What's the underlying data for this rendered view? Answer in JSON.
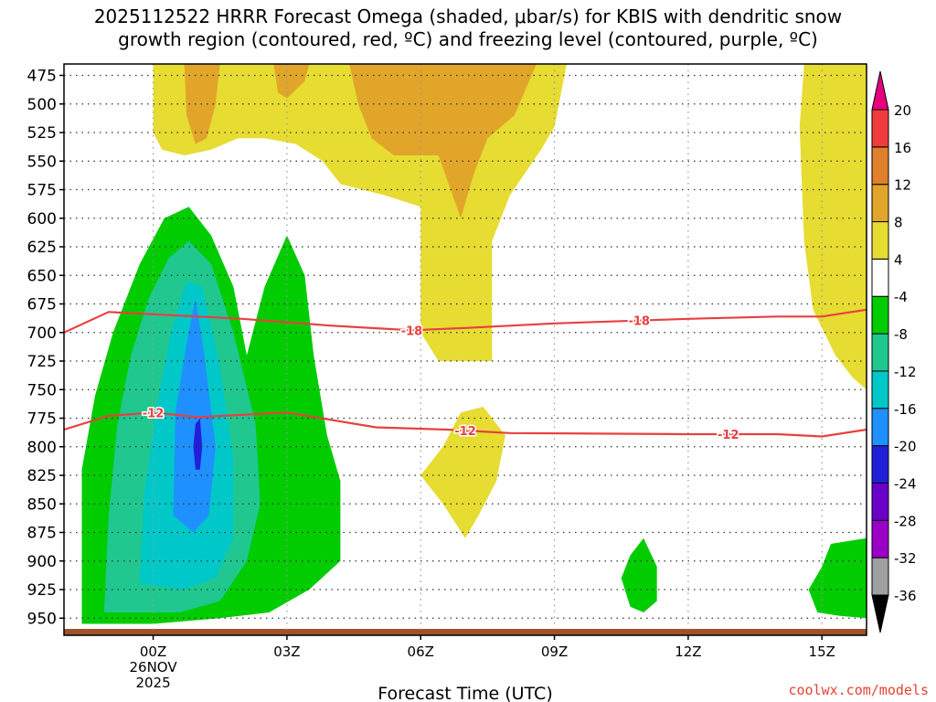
{
  "title": {
    "line1": "2025112522 HRRR Forecast Omega (shaded, μbar/s) for KBIS with dendritic snow",
    "line2": "growth region (contoured, red, ºC) and freezing level (contoured, purple, ºC)"
  },
  "credit": "coolwx.com/models",
  "chart_data": {
    "type": "contour",
    "title": "2025112522 HRRR Forecast Omega (shaded, μbar/s) for KBIS with dendritic snow growth region (contoured, red, ºC) and freezing level (contoured, purple, ºC)",
    "xlabel": "Forecast Time (UTC)",
    "ylabel": "",
    "x_ticks": [
      {
        "label": "00Z",
        "sub": [
          "26NOV",
          "2025"
        ]
      },
      {
        "label": "03Z"
      },
      {
        "label": "06Z"
      },
      {
        "label": "09Z"
      },
      {
        "label": "12Z"
      },
      {
        "label": "15Z"
      }
    ],
    "xlim_hours": [
      -2,
      16
    ],
    "y_ticks": [
      475,
      500,
      525,
      550,
      575,
      600,
      625,
      650,
      675,
      700,
      725,
      750,
      775,
      800,
      825,
      850,
      875,
      900,
      925,
      950
    ],
    "ylim_hpa": [
      465,
      965
    ],
    "colorbar": {
      "levels": [
        -36,
        -32,
        -28,
        -24,
        -20,
        -16,
        -12,
        -8,
        -4,
        4,
        8,
        12,
        16,
        20
      ],
      "colors": {
        "le_-36": "#000000",
        "-36_-32": "#a0a0a0",
        "-32_-28": "#9b00c8",
        "-28_-24": "#6b00c8",
        "-24_-20": "#2020d8",
        "-20_-16": "#1e90ff",
        "-16_-12": "#00c8c8",
        "-12_-8": "#20c890",
        "-8_-4": "#00cc00",
        "-4_4": "#ffffff",
        "4_8": "#e6dc32",
        "8_12": "#e1a52a",
        "12_16": "#e0802a",
        "16_20": "#f03c3c",
        "ge_20": "#e6007e"
      }
    },
    "fill_regions": [
      {
        "name": "upward-motion-green",
        "level": "-8_-4",
        "points": [
          [
            -1.6,
            955
          ],
          [
            -1.6,
            820
          ],
          [
            -1.3,
            755
          ],
          [
            -0.9,
            700
          ],
          [
            -0.3,
            640
          ],
          [
            0.25,
            600
          ],
          [
            0.8,
            590
          ],
          [
            1.3,
            615
          ],
          [
            1.8,
            660
          ],
          [
            2.1,
            720
          ],
          [
            2.5,
            660
          ],
          [
            3.0,
            615
          ],
          [
            3.4,
            650
          ],
          [
            3.6,
            720
          ],
          [
            3.9,
            790
          ],
          [
            4.2,
            830
          ],
          [
            4.2,
            900
          ],
          [
            3.5,
            925
          ],
          [
            2.6,
            945
          ],
          [
            1.5,
            950
          ],
          [
            0.0,
            955
          ]
        ]
      },
      {
        "name": "upward-motion-teal",
        "level": "-12_-8",
        "points": [
          [
            -1.1,
            945
          ],
          [
            -1.0,
            860
          ],
          [
            -0.8,
            780
          ],
          [
            -0.5,
            720
          ],
          [
            -0.1,
            670
          ],
          [
            0.35,
            635
          ],
          [
            0.8,
            620
          ],
          [
            1.3,
            640
          ],
          [
            1.8,
            700
          ],
          [
            2.3,
            780
          ],
          [
            2.4,
            850
          ],
          [
            2.1,
            900
          ],
          [
            1.5,
            935
          ],
          [
            0.6,
            945
          ]
        ]
      },
      {
        "name": "upward-motion-cyan",
        "level": "-16_-12",
        "points": [
          [
            -0.3,
            920
          ],
          [
            -0.2,
            840
          ],
          [
            0.1,
            760
          ],
          [
            0.4,
            700
          ],
          [
            0.75,
            655
          ],
          [
            1.1,
            660
          ],
          [
            1.5,
            730
          ],
          [
            1.8,
            810
          ],
          [
            1.8,
            880
          ],
          [
            1.4,
            915
          ],
          [
            0.7,
            925
          ]
        ]
      },
      {
        "name": "upward-motion-blue",
        "level": "-20_-16",
        "points": [
          [
            0.45,
            860
          ],
          [
            0.5,
            770
          ],
          [
            0.75,
            710
          ],
          [
            0.95,
            670
          ],
          [
            1.15,
            720
          ],
          [
            1.4,
            800
          ],
          [
            1.25,
            860
          ],
          [
            0.9,
            875
          ]
        ]
      },
      {
        "name": "upward-motion-darkblue",
        "level": "-24_-20",
        "points": [
          [
            0.9,
            800
          ],
          [
            0.95,
            780
          ],
          [
            1.05,
            775
          ],
          [
            1.1,
            800
          ],
          [
            1.05,
            820
          ],
          [
            0.95,
            820
          ]
        ]
      },
      {
        "name": "sinking-yellow-left",
        "level": "4_8",
        "points": [
          [
            0.0,
            465
          ],
          [
            0.0,
            525
          ],
          [
            0.2,
            540
          ],
          [
            0.7,
            545
          ],
          [
            1.3,
            540
          ],
          [
            1.9,
            530
          ],
          [
            2.5,
            530
          ],
          [
            3.2,
            535
          ],
          [
            3.8,
            550
          ],
          [
            4.2,
            570
          ],
          [
            5.2,
            580
          ],
          [
            6.0,
            590
          ],
          [
            6.0,
            700
          ],
          [
            6.4,
            725
          ],
          [
            7.6,
            725
          ],
          [
            7.6,
            620
          ],
          [
            8.0,
            580
          ],
          [
            8.7,
            540
          ],
          [
            9.0,
            520
          ],
          [
            9.3,
            460
          ]
        ]
      },
      {
        "name": "sinking-orange-top",
        "level": "8_12",
        "points": [
          [
            4.4,
            465
          ],
          [
            4.6,
            500
          ],
          [
            4.9,
            530
          ],
          [
            5.4,
            545
          ],
          [
            6.4,
            545
          ],
          [
            6.9,
            600
          ],
          [
            7.2,
            560
          ],
          [
            7.5,
            530
          ],
          [
            8.1,
            510
          ],
          [
            8.6,
            465
          ]
        ]
      },
      {
        "name": "sinking-orange-small-a",
        "level": "8_12",
        "points": [
          [
            0.7,
            465
          ],
          [
            0.75,
            510
          ],
          [
            0.95,
            535
          ],
          [
            1.2,
            530
          ],
          [
            1.4,
            500
          ],
          [
            1.5,
            465
          ]
        ]
      },
      {
        "name": "sinking-orange-small-b",
        "level": "8_12",
        "points": [
          [
            2.7,
            465
          ],
          [
            2.8,
            490
          ],
          [
            3.0,
            495
          ],
          [
            3.4,
            480
          ],
          [
            3.5,
            465
          ]
        ]
      },
      {
        "name": "sinking-yellow-mid",
        "level": "4_8",
        "points": [
          [
            6.0,
            825
          ],
          [
            6.5,
            800
          ],
          [
            6.9,
            770
          ],
          [
            7.4,
            765
          ],
          [
            7.9,
            790
          ],
          [
            7.7,
            830
          ],
          [
            7.3,
            860
          ],
          [
            7.0,
            880
          ],
          [
            6.5,
            850
          ]
        ]
      },
      {
        "name": "sinking-yellow-right",
        "level": "4_8",
        "points": [
          [
            14.6,
            465
          ],
          [
            14.5,
            520
          ],
          [
            14.6,
            620
          ],
          [
            14.8,
            680
          ],
          [
            15.3,
            720
          ],
          [
            15.7,
            740
          ],
          [
            16.0,
            750
          ],
          [
            16.0,
            465
          ]
        ]
      },
      {
        "name": "upward-green-small",
        "level": "-8_-4",
        "points": [
          [
            10.5,
            915
          ],
          [
            10.7,
            895
          ],
          [
            11.0,
            880
          ],
          [
            11.3,
            905
          ],
          [
            11.3,
            935
          ],
          [
            11.0,
            945
          ],
          [
            10.7,
            940
          ]
        ]
      },
      {
        "name": "upward-green-right",
        "level": "-8_-4",
        "points": [
          [
            14.7,
            925
          ],
          [
            15.0,
            905
          ],
          [
            15.2,
            885
          ],
          [
            16.0,
            880
          ],
          [
            16.0,
            950
          ],
          [
            15.4,
            948
          ],
          [
            14.9,
            945
          ]
        ]
      }
    ],
    "contours": [
      {
        "value": -18,
        "label": "-18",
        "color": "#e84040",
        "points": [
          [
            -2,
            700
          ],
          [
            -1.0,
            682
          ],
          [
            0,
            684
          ],
          [
            2,
            688
          ],
          [
            4,
            694
          ],
          [
            5.8,
            698
          ],
          [
            7,
            696
          ],
          [
            9,
            692
          ],
          [
            10.5,
            690
          ],
          [
            12,
            688
          ],
          [
            14,
            686
          ],
          [
            15,
            686
          ],
          [
            16,
            680
          ]
        ],
        "label_positions": [
          5.8,
          10.9
        ]
      },
      {
        "value": -12,
        "label": "-12",
        "color": "#e84040",
        "points": [
          [
            -2,
            785
          ],
          [
            -1.0,
            773
          ],
          [
            0,
            770
          ],
          [
            1,
            774
          ],
          [
            3,
            770
          ],
          [
            5,
            783
          ],
          [
            6.6,
            785
          ],
          [
            8,
            788
          ],
          [
            12,
            789
          ],
          [
            14,
            789
          ],
          [
            15,
            791
          ],
          [
            16,
            785
          ]
        ],
        "label_positions": [
          0.0,
          7.0,
          12.9
        ]
      }
    ],
    "ground_strip_color": "#a0522d"
  }
}
